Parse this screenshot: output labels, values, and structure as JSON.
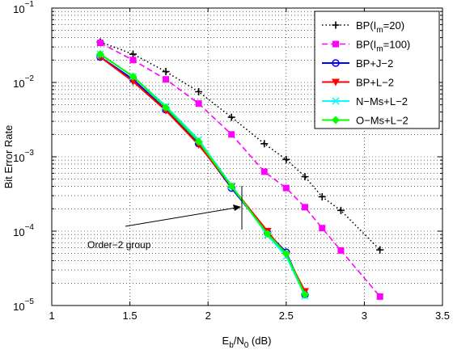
{
  "chart_data": {
    "type": "line",
    "title": "",
    "xlabel": "E_b/N_0 (dB)",
    "ylabel": "Bit Error Rate",
    "xlim": [
      1,
      3.5
    ],
    "ylim": [
      1e-05,
      0.1
    ],
    "yscale": "log",
    "grid": true,
    "legend_position": "top-right",
    "x_ticks": [
      {
        "value": 1,
        "label": "1"
      },
      {
        "value": 1.5,
        "label": "1.5"
      },
      {
        "value": 2,
        "label": "2"
      },
      {
        "value": 2.5,
        "label": "2.5"
      },
      {
        "value": 3,
        "label": "3"
      },
      {
        "value": 3.5,
        "label": "3.5"
      }
    ],
    "y_ticks": [
      {
        "value": 1e-05,
        "mantissa": "10",
        "exp": "−5"
      },
      {
        "value": 0.0001,
        "mantissa": "10",
        "exp": "−4"
      },
      {
        "value": 0.001,
        "mantissa": "10",
        "exp": "−3"
      },
      {
        "value": 0.01,
        "mantissa": "10",
        "exp": "−2"
      },
      {
        "value": 0.1,
        "mantissa": "10",
        "exp": "−1"
      }
    ],
    "series": [
      {
        "name": "BP(I_m=20)",
        "color": "#000000",
        "dash": "dotted",
        "marker": "plus",
        "x": [
          1.31,
          1.52,
          1.73,
          1.94,
          2.15,
          2.36,
          2.5,
          2.62,
          2.73,
          2.85,
          3.1
        ],
        "y": [
          0.035,
          0.024,
          0.014,
          0.0075,
          0.0034,
          0.0015,
          0.00092,
          0.00054,
          0.00029,
          0.00019,
          5.6e-05
        ]
      },
      {
        "name": "BP(I_m=100)",
        "color": "#ff00ff",
        "dash": "dashed",
        "marker": "square",
        "x": [
          1.31,
          1.52,
          1.73,
          1.94,
          2.15,
          2.36,
          2.5,
          2.62,
          2.73,
          2.85,
          3.1
        ],
        "y": [
          0.034,
          0.02,
          0.011,
          0.0052,
          0.002,
          0.00063,
          0.00038,
          0.00021,
          0.00011,
          5.5e-05,
          1.32e-05
        ]
      },
      {
        "name": "BP+J−2",
        "color": "#0000ff",
        "dash": "solid",
        "marker": "circle",
        "x": [
          1.31,
          1.52,
          1.73,
          1.94,
          2.15,
          2.38,
          2.5,
          2.62
        ],
        "y": [
          0.022,
          0.011,
          0.0043,
          0.0015,
          0.00038,
          9.5e-05,
          5.2e-05,
          1.4e-05
        ]
      },
      {
        "name": "BP+L−2",
        "color": "#ff0000",
        "dash": "solid",
        "marker": "triangle-down",
        "x": [
          1.31,
          1.52,
          1.73,
          1.94,
          2.15,
          2.38,
          2.5,
          2.62
        ],
        "y": [
          0.022,
          0.0103,
          0.0042,
          0.00145,
          0.0004,
          0.0001,
          4.8e-05,
          1.55e-05
        ]
      },
      {
        "name": "N−Ms+L−2",
        "color": "#00ffff",
        "dash": "solid",
        "marker": "x",
        "x": [
          1.31,
          1.52,
          1.73,
          1.94,
          2.15,
          2.38,
          2.5,
          2.62
        ],
        "y": [
          0.024,
          0.012,
          0.0048,
          0.0017,
          0.00041,
          8.8e-05,
          4.6e-05,
          1.35e-05
        ]
      },
      {
        "name": "O−Ms+L−2",
        "color": "#00ff00",
        "dash": "solid",
        "marker": "diamond",
        "x": [
          1.31,
          1.52,
          1.73,
          1.94,
          2.15,
          2.38,
          2.5,
          2.62
        ],
        "y": [
          0.024,
          0.012,
          0.0046,
          0.0016,
          0.0004,
          9.2e-05,
          5e-05,
          1.4e-05
        ]
      }
    ],
    "annotations": [
      {
        "text": "Order−2 group"
      }
    ]
  }
}
